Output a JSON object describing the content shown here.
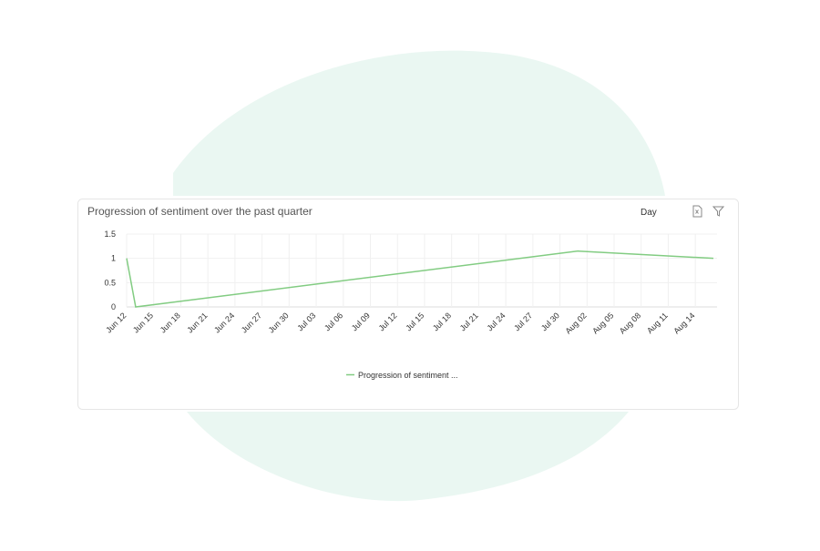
{
  "toolbar": {
    "granularity": "Day"
  },
  "chart_data": {
    "type": "line",
    "title": "Progression of sentiment over the past quarter",
    "x": [
      "Jun 12",
      "Jun 13",
      "Aug 01",
      "Aug 16"
    ],
    "series": [
      {
        "name": "Progression of sentiment ...",
        "color": "#82cc82",
        "values": [
          1,
          0,
          1.15,
          1
        ]
      }
    ],
    "xlim": [
      "Jun 12",
      "Aug 16"
    ],
    "xticks": [
      "Jun 12",
      "Jun 15",
      "Jun 18",
      "Jun 21",
      "Jun 24",
      "Jun 27",
      "Jun 30",
      "Jul 03",
      "Jul 06",
      "Jul 09",
      "Jul 12",
      "Jul 15",
      "Jul 18",
      "Jul 21",
      "Jul 24",
      "Jul 27",
      "Jul 30",
      "Aug 02",
      "Aug 05",
      "Aug 08",
      "Aug 11",
      "Aug 14"
    ],
    "ylim": [
      0,
      1.5
    ],
    "yticks": [
      0,
      0.5,
      1,
      1.5
    ],
    "grid": true,
    "legend": "bottom"
  }
}
